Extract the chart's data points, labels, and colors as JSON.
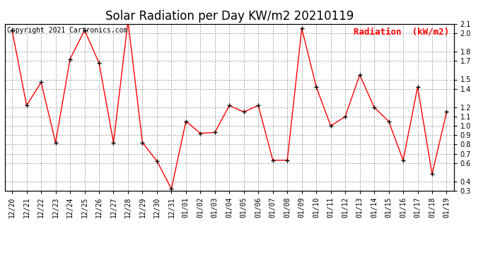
{
  "title": "Solar Radiation per Day KW/m2 20210119",
  "copyright_text": "Copyright 2021 Cartronics.com",
  "legend_label": "Radiation  (kW/m2)",
  "dates": [
    "12/20",
    "12/21",
    "12/22",
    "12/23",
    "12/24",
    "12/25",
    "12/26",
    "12/27",
    "12/28",
    "12/29",
    "12/30",
    "12/31",
    "01/01",
    "01/02",
    "01/03",
    "01/04",
    "01/05",
    "01/06",
    "01/07",
    "01/08",
    "01/09",
    "01/10",
    "01/11",
    "01/12",
    "01/13",
    "01/14",
    "01/15",
    "01/16",
    "01/17",
    "01/18",
    "01/19"
  ],
  "values": [
    2.03,
    1.22,
    1.47,
    0.82,
    1.72,
    2.03,
    1.68,
    0.82,
    2.13,
    0.82,
    0.62,
    0.32,
    1.05,
    0.92,
    0.93,
    1.22,
    1.15,
    1.22,
    0.63,
    0.63,
    2.05,
    1.42,
    1.0,
    1.1,
    1.55,
    1.2,
    1.05,
    0.63,
    1.42,
    0.48,
    1.15
  ],
  "line_color": "red",
  "marker_color": "black",
  "marker_size": 5,
  "ylim": [
    0.3,
    2.1
  ],
  "yticks": [
    0.3,
    0.4,
    0.6,
    0.7,
    0.8,
    0.9,
    1.0,
    1.1,
    1.2,
    1.4,
    1.5,
    1.7,
    1.8,
    2.0,
    2.1
  ],
  "background_color": "white",
  "grid_color": "#aaaaaa",
  "title_fontsize": 12,
  "copyright_fontsize": 7,
  "legend_fontsize": 9,
  "tick_fontsize": 7
}
